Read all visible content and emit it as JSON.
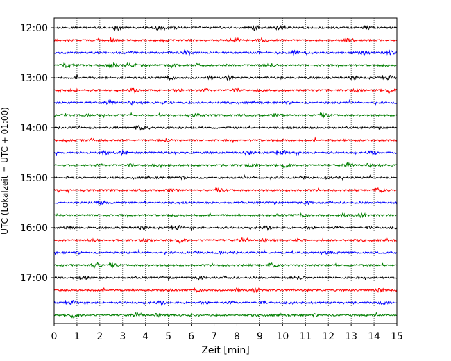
{
  "chart_data": {
    "type": "line",
    "title": "",
    "xlabel": "Zeit  [min]",
    "ylabel": "UTC (Lokalzeit = UTC + 01:00)",
    "xlim": [
      0,
      15
    ],
    "x_ticks": [
      "0",
      "1",
      "2",
      "3",
      "4",
      "5",
      "6",
      "7",
      "8",
      "9",
      "10",
      "11",
      "12",
      "13",
      "14",
      "15"
    ],
    "y_tick_labels": [
      "12:00",
      "13:00",
      "14:00",
      "15:00",
      "16:00",
      "17:00"
    ],
    "grid": "vertical dotted lines at each minute",
    "legend": "none",
    "trace_interval_minutes": 15,
    "trace_start_times": [
      "12:00",
      "12:15",
      "12:30",
      "12:45",
      "13:00",
      "13:15",
      "13:30",
      "13:45",
      "14:00",
      "14:15",
      "14:30",
      "14:45",
      "15:00",
      "15:15",
      "15:30",
      "15:45",
      "16:00",
      "16:15",
      "16:30",
      "16:45",
      "17:00",
      "17:15",
      "17:30",
      "17:45"
    ],
    "trace_colors": [
      "#000000",
      "#ff0000",
      "#0000ff",
      "#007f00"
    ],
    "series_description": "Seismogram traces (noise), one per 15-minute window, cycling colors black, red, blue, green"
  }
}
